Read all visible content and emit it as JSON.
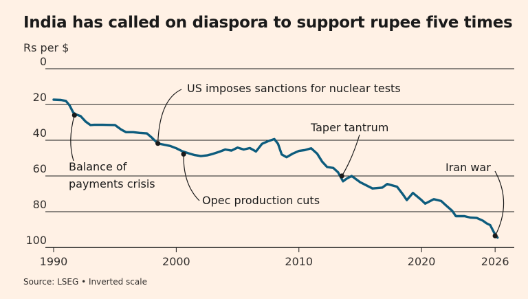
{
  "title": "India has called on diaspora to support rupee five times",
  "unit_label": "Rs per $",
  "source": "Source: LSEG • Inverted scale",
  "colors": {
    "background": "#fff1e5",
    "line": "#0d5c7d",
    "grid": "#1a1a1a",
    "annotation": "#1a1a1a"
  },
  "chart_data": {
    "type": "line",
    "title": "India has called on diaspora to support rupee five times",
    "ylabel": "Rs per $",
    "xlabel": "",
    "inverted_y": true,
    "ylim": [
      0,
      100
    ],
    "xlim": [
      1990,
      2027
    ],
    "grid": true,
    "x_ticks": [
      {
        "value": 1990,
        "label": "1990"
      },
      {
        "value": 2000,
        "label": "2000"
      },
      {
        "value": 2010,
        "label": "2010"
      },
      {
        "value": 2020,
        "label": "2020"
      },
      {
        "value": 2026,
        "label": "2026"
      }
    ],
    "y_ticks": [
      {
        "value": 0,
        "label": "0"
      },
      {
        "value": 20,
        "label": "20"
      },
      {
        "value": 40,
        "label": "40"
      },
      {
        "value": 60,
        "label": "60"
      },
      {
        "value": 80,
        "label": "80"
      },
      {
        "value": 100,
        "label": "100"
      }
    ],
    "series": [
      {
        "x": [
          1990.0,
          1990.6,
          1991.0,
          1991.3,
          1991.6,
          1991.8,
          1992.2,
          1992.6,
          1993.0,
          1993.3,
          1994.0,
          1995.0,
          1995.5,
          1995.9,
          1996.5,
          1997.0,
          1997.6,
          1998.0,
          1998.5,
          1999.0,
          1999.5,
          2000.0,
          2000.5,
          2001.0,
          2001.5,
          2002.0,
          2002.5,
          2003.0,
          2003.5,
          2004.0,
          2004.5,
          2005.0,
          2005.5,
          2006.0,
          2006.5,
          2007.0,
          2007.5,
          2008.0,
          2008.3,
          2008.6,
          2009.0,
          2009.5,
          2010.0,
          2010.5,
          2011.0,
          2011.5,
          2011.9,
          2012.3,
          2012.8,
          2013.2,
          2013.6,
          2013.9,
          2014.3,
          2015.0,
          2016.0,
          2016.8,
          2017.2,
          2018.0,
          2018.5,
          2018.8,
          2019.3,
          2020.0,
          2020.3,
          2021.0,
          2021.6,
          2022.0,
          2022.5,
          2022.8,
          2023.5,
          2024.0,
          2024.5,
          2025.0,
          2025.3,
          2025.6,
          2025.9,
          2026.2
        ],
        "y": [
          17.3,
          17.5,
          18.0,
          20.5,
          24.5,
          25.5,
          26.5,
          29.5,
          31.5,
          31.4,
          31.4,
          31.5,
          34.0,
          35.5,
          35.5,
          35.9,
          36.2,
          38.5,
          41.8,
          42.5,
          43.2,
          44.5,
          46.2,
          47.3,
          48.3,
          48.9,
          48.5,
          47.6,
          46.5,
          45.2,
          45.8,
          44.1,
          45.2,
          44.4,
          46.3,
          42.0,
          40.5,
          39.4,
          42.0,
          48.0,
          49.5,
          47.5,
          46.0,
          45.5,
          44.5,
          47.6,
          52.0,
          55.0,
          55.5,
          58.0,
          63.0,
          61.5,
          60.0,
          63.5,
          67.0,
          66.5,
          64.5,
          66.0,
          70.5,
          73.5,
          69.5,
          73.5,
          75.5,
          73.0,
          74.0,
          76.5,
          79.5,
          82.5,
          82.5,
          83.3,
          83.5,
          85.0,
          86.5,
          87.5,
          91.5,
          94.5
        ]
      }
    ],
    "annotations": [
      {
        "label": "Balance of payments crisis",
        "x": 1991.7,
        "y": 26.0
      },
      {
        "label": "US imposes sanctions for nuclear tests",
        "x": 1998.5,
        "y": 41.8
      },
      {
        "label": "Opec production cuts",
        "x": 2000.6,
        "y": 47.8
      },
      {
        "label": "Taper tantrum",
        "x": 2013.5,
        "y": 60.0
      },
      {
        "label": "Iran war",
        "x": 2026.0,
        "y": 93.5
      }
    ]
  }
}
